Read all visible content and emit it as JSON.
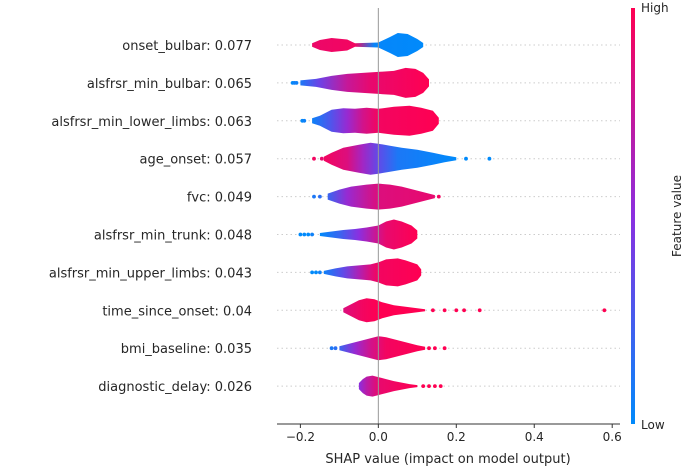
{
  "chart_data": {
    "type": "violin",
    "title": "",
    "xlabel": "SHAP value (impact on model output)",
    "ylabel": "",
    "xlim": [
      -0.26,
      0.62
    ],
    "xticks": [
      -0.2,
      0.0,
      0.2,
      0.4,
      0.6
    ],
    "xtick_labels": [
      "−0.2",
      "0.0",
      "0.2",
      "0.4",
      "0.6"
    ],
    "colorbar": {
      "label": "Feature value",
      "high": "High",
      "low": "Low"
    },
    "features": [
      {
        "label": "onset_bulbar: 0.077",
        "profile": [
          [
            -0.17,
            1.8
          ],
          [
            -0.15,
            5
          ],
          [
            -0.12,
            7
          ],
          [
            -0.08,
            5.5
          ],
          [
            -0.06,
            1.8
          ],
          [
            0.0,
            2.5
          ],
          [
            0.03,
            8
          ],
          [
            0.05,
            12
          ],
          [
            0.075,
            11
          ],
          [
            0.1,
            6
          ],
          [
            0.115,
            2
          ]
        ],
        "colors": [
          [
            -0.17,
            0.92
          ],
          [
            -0.06,
            0.95
          ],
          [
            -0.01,
            0.02
          ],
          [
            0.12,
            0.0
          ]
        ],
        "outliers": []
      },
      {
        "label": "alsfrsr_min_bulbar: 0.065",
        "profile": [
          [
            -0.2,
            2.5
          ],
          [
            -0.16,
            4
          ],
          [
            -0.12,
            7
          ],
          [
            -0.08,
            9
          ],
          [
            -0.04,
            10
          ],
          [
            0.0,
            11
          ],
          [
            0.04,
            12
          ],
          [
            0.07,
            15
          ],
          [
            0.095,
            14
          ],
          [
            0.115,
            10
          ],
          [
            0.13,
            3.5
          ]
        ],
        "colors": [
          [
            -0.2,
            0.1
          ],
          [
            -0.15,
            0.4
          ],
          [
            -0.08,
            0.75
          ],
          [
            -0.02,
            0.9
          ],
          [
            0.13,
            1.0
          ]
        ],
        "outliers": [
          [
            -0.22,
            0.0
          ],
          [
            -0.215,
            0.05
          ],
          [
            -0.21,
            0.05
          ]
        ]
      },
      {
        "label": "alsfrsr_min_lower_limbs: 0.063",
        "profile": [
          [
            -0.17,
            2.5
          ],
          [
            -0.15,
            5
          ],
          [
            -0.12,
            11
          ],
          [
            -0.09,
            12.5
          ],
          [
            -0.06,
            12
          ],
          [
            -0.03,
            13
          ],
          [
            0.0,
            12
          ],
          [
            0.04,
            14
          ],
          [
            0.08,
            15
          ],
          [
            0.11,
            13
          ],
          [
            0.14,
            10
          ],
          [
            0.155,
            3
          ]
        ],
        "colors": [
          [
            -0.17,
            0.05
          ],
          [
            -0.12,
            0.3
          ],
          [
            -0.08,
            0.55
          ],
          [
            -0.04,
            0.8
          ],
          [
            0.0,
            0.95
          ],
          [
            0.155,
            1.0
          ]
        ],
        "outliers": [
          [
            -0.195,
            0.0
          ],
          [
            -0.19,
            0.05
          ]
        ]
      },
      {
        "label": "age_onset: 0.057",
        "profile": [
          [
            -0.14,
            2
          ],
          [
            -0.12,
            6
          ],
          [
            -0.09,
            11
          ],
          [
            -0.05,
            14
          ],
          [
            -0.02,
            16
          ],
          [
            0.0,
            15
          ],
          [
            0.03,
            13
          ],
          [
            0.06,
            11
          ],
          [
            0.1,
            9
          ],
          [
            0.14,
            6
          ],
          [
            0.17,
            3.5
          ],
          [
            0.2,
            1.5
          ]
        ],
        "colors": [
          [
            -0.14,
            0.95
          ],
          [
            -0.08,
            0.85
          ],
          [
            -0.04,
            0.6
          ],
          [
            0.0,
            0.35
          ],
          [
            0.05,
            0.1
          ],
          [
            0.2,
            0.0
          ]
        ],
        "outliers": [
          [
            -0.165,
            0.95
          ],
          [
            -0.145,
            0.9
          ],
          [
            0.225,
            0.0
          ],
          [
            0.285,
            0.0
          ]
        ]
      },
      {
        "label": "fvc: 0.049",
        "profile": [
          [
            -0.13,
            3
          ],
          [
            -0.1,
            7
          ],
          [
            -0.07,
            10
          ],
          [
            -0.03,
            12
          ],
          [
            0.0,
            13
          ],
          [
            0.03,
            12
          ],
          [
            0.06,
            10
          ],
          [
            0.09,
            7
          ],
          [
            0.12,
            4
          ],
          [
            0.145,
            1.5
          ]
        ],
        "colors": [
          [
            -0.13,
            0.2
          ],
          [
            -0.08,
            0.55
          ],
          [
            -0.03,
            0.75
          ],
          [
            0.0,
            0.85
          ],
          [
            0.15,
            0.9
          ]
        ],
        "outliers": [
          [
            -0.165,
            0.1
          ],
          [
            -0.15,
            0.15
          ],
          [
            0.155,
            0.95
          ]
        ]
      },
      {
        "label": "alsfrsr_min_trunk: 0.048",
        "profile": [
          [
            -0.15,
            1.5
          ],
          [
            -0.12,
            3
          ],
          [
            -0.09,
            4.5
          ],
          [
            -0.06,
            5.5
          ],
          [
            -0.03,
            7
          ],
          [
            0.0,
            9
          ],
          [
            0.02,
            13
          ],
          [
            0.04,
            15
          ],
          [
            0.06,
            13
          ],
          [
            0.085,
            9
          ],
          [
            0.1,
            4
          ]
        ],
        "colors": [
          [
            -0.15,
            0.0
          ],
          [
            -0.1,
            0.2
          ],
          [
            -0.05,
            0.5
          ],
          [
            -0.01,
            0.75
          ],
          [
            0.02,
            0.9
          ],
          [
            0.1,
            1.0
          ]
        ],
        "outliers": [
          [
            -0.2,
            0.0
          ],
          [
            -0.19,
            0.0
          ],
          [
            -0.18,
            0.0
          ],
          [
            -0.17,
            0.05
          ]
        ]
      },
      {
        "label": "alsfrsr_min_upper_limbs: 0.043",
        "profile": [
          [
            -0.14,
            1.5
          ],
          [
            -0.11,
            4
          ],
          [
            -0.08,
            6
          ],
          [
            -0.05,
            7
          ],
          [
            -0.02,
            8
          ],
          [
            0.0,
            10
          ],
          [
            0.02,
            13
          ],
          [
            0.05,
            14
          ],
          [
            0.07,
            12
          ],
          [
            0.1,
            8
          ],
          [
            0.11,
            3
          ]
        ],
        "colors": [
          [
            -0.14,
            0.05
          ],
          [
            -0.09,
            0.35
          ],
          [
            -0.05,
            0.65
          ],
          [
            -0.02,
            0.85
          ],
          [
            0.0,
            0.95
          ],
          [
            0.11,
            1.0
          ]
        ],
        "outliers": [
          [
            -0.17,
            0.0
          ],
          [
            -0.16,
            0.0
          ],
          [
            -0.15,
            0.05
          ]
        ]
      },
      {
        "label": "time_since_onset: 0.04",
        "profile": [
          [
            -0.09,
            2
          ],
          [
            -0.07,
            6
          ],
          [
            -0.05,
            10
          ],
          [
            -0.03,
            12
          ],
          [
            -0.01,
            11
          ],
          [
            0.01,
            8
          ],
          [
            0.04,
            5
          ],
          [
            0.07,
            3.5
          ],
          [
            0.1,
            2
          ],
          [
            0.12,
            1
          ]
        ],
        "colors": [
          [
            -0.09,
            0.85
          ],
          [
            -0.04,
            0.95
          ],
          [
            0.0,
            1.0
          ],
          [
            0.12,
            1.0
          ]
        ],
        "outliers": [
          [
            0.14,
            1.0
          ],
          [
            0.17,
            1.0
          ],
          [
            0.2,
            1.0
          ],
          [
            0.22,
            1.0
          ],
          [
            0.26,
            1.0
          ],
          [
            0.58,
            1.0
          ]
        ]
      },
      {
        "label": "bmi_baseline: 0.035",
        "profile": [
          [
            -0.1,
            2
          ],
          [
            -0.07,
            5
          ],
          [
            -0.04,
            8
          ],
          [
            -0.02,
            10
          ],
          [
            0.0,
            12
          ],
          [
            0.02,
            11
          ],
          [
            0.05,
            8
          ],
          [
            0.08,
            5
          ],
          [
            0.1,
            3
          ],
          [
            0.12,
            1.5
          ]
        ],
        "colors": [
          [
            -0.1,
            0.2
          ],
          [
            -0.06,
            0.55
          ],
          [
            -0.02,
            0.8
          ],
          [
            0.02,
            0.95
          ],
          [
            0.12,
            1.0
          ]
        ],
        "outliers": [
          [
            -0.12,
            0.1
          ],
          [
            -0.11,
            0.15
          ],
          [
            0.13,
            1.0
          ],
          [
            0.145,
            1.0
          ],
          [
            0.17,
            1.0
          ]
        ]
      },
      {
        "label": "diagnostic_delay: 0.026",
        "profile": [
          [
            -0.05,
            3
          ],
          [
            -0.04,
            7
          ],
          [
            -0.03,
            9.5
          ],
          [
            -0.015,
            10.5
          ],
          [
            0.0,
            9
          ],
          [
            0.02,
            7
          ],
          [
            0.04,
            5
          ],
          [
            0.06,
            3.5
          ],
          [
            0.08,
            2
          ],
          [
            0.1,
            1
          ]
        ],
        "colors": [
          [
            -0.05,
            0.5
          ],
          [
            -0.03,
            0.7
          ],
          [
            0.0,
            0.9
          ],
          [
            0.1,
            1.0
          ]
        ],
        "outliers": [
          [
            0.115,
            1.0
          ],
          [
            0.13,
            1.0
          ],
          [
            0.145,
            1.0
          ],
          [
            0.16,
            1.0
          ]
        ]
      }
    ]
  }
}
